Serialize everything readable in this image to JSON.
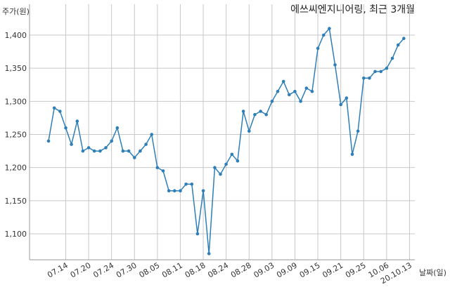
{
  "chart_data": {
    "type": "line",
    "title": "에쓰씨엔지니어링, 최근 3개월",
    "ylabel": "주가(원)",
    "xlabel": "날짜(일)",
    "ylim": [
      1050,
      1430
    ],
    "yticks": [
      1100,
      1150,
      1200,
      1250,
      1300,
      1350,
      1400
    ],
    "ytick_labels": [
      "1,100",
      "1,150",
      "1,200",
      "1,250",
      "1,300",
      "1,350",
      "1,400"
    ],
    "xtick_labels": [
      "07.14",
      "07.20",
      "07.24",
      "07.30",
      "08.05",
      "08.11",
      "08.18",
      "08.24",
      "08.28",
      "09.03",
      "09.09",
      "09.15",
      "09.21",
      "09.25",
      "10.06",
      "20.10.13"
    ],
    "xtick_index": [
      3,
      7,
      11,
      15,
      19,
      23,
      27,
      31,
      35,
      39,
      43,
      47,
      51,
      55,
      59,
      63
    ],
    "grid": true,
    "series": [
      {
        "color": "#2e7fb8",
        "values": [
          1240,
          1290,
          1285,
          1260,
          1235,
          1270,
          1225,
          1230,
          1225,
          1225,
          1230,
          1240,
          1260,
          1225,
          1225,
          1215,
          1225,
          1235,
          1250,
          1200,
          1195,
          1165,
          1165,
          1165,
          1175,
          1175,
          1100,
          1165,
          1070,
          1200,
          1190,
          1205,
          1220,
          1210,
          1285,
          1255,
          1280,
          1285,
          1280,
          1300,
          1315,
          1330,
          1310,
          1315,
          1300,
          1320,
          1315,
          1380,
          1400,
          1410,
          1355,
          1295,
          1305,
          1220,
          1255,
          1335,
          1335,
          1345,
          1345,
          1350,
          1365,
          1385,
          1395
        ]
      }
    ]
  }
}
